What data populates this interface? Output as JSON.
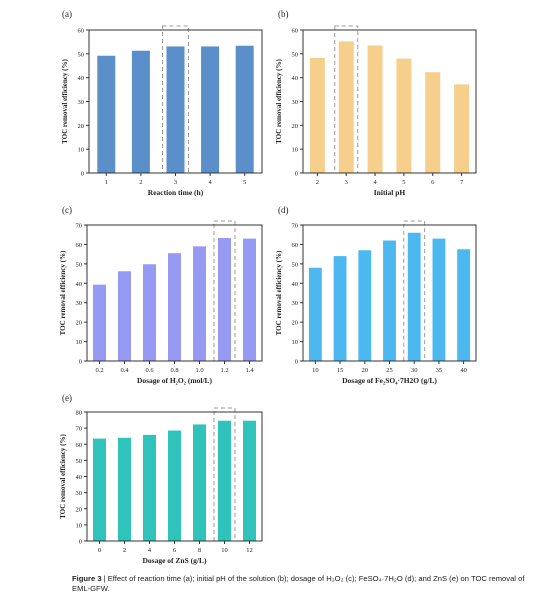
{
  "chart_data": [
    {
      "type": "bar",
      "panel_label": "(a)",
      "categories": [
        "1",
        "2",
        "3",
        "4",
        "5"
      ],
      "values": [
        49.2,
        51.3,
        53.1,
        53.1,
        53.4
      ],
      "xlabel": "Reaction time (h)",
      "ylabel": "TOC removal efficiency (%)",
      "ylim": [
        0,
        60
      ],
      "yticks": [
        "0",
        "10",
        "20",
        "30",
        "40",
        "50",
        "60"
      ],
      "highlight_index": 2,
      "color": "#5b8fc9"
    },
    {
      "type": "bar",
      "panel_label": "(b)",
      "categories": [
        "2",
        "3",
        "4",
        "5",
        "6",
        "7"
      ],
      "values": [
        48.3,
        55.2,
        53.5,
        48.0,
        42.3,
        37.2
      ],
      "xlabel": "Initial pH",
      "ylabel": "TOC removal efficiency (%)",
      "ylim": [
        0,
        60
      ],
      "yticks": [
        "0",
        "10",
        "20",
        "30",
        "40",
        "50",
        "60"
      ],
      "highlight_index": 1,
      "color": "#f6cf8d"
    },
    {
      "type": "bar",
      "panel_label": "(c)",
      "categories": [
        "0.2",
        "0.4",
        "0.6",
        "0.8",
        "1.0",
        "1.2",
        "1.4"
      ],
      "values": [
        39.3,
        46.2,
        49.8,
        55.5,
        59.0,
        63.3,
        63.0
      ],
      "xlabel": "Dosage of  H₂O₂ (mol/L)",
      "ylabel": "TOC removal efficiency (%)",
      "ylim": [
        0,
        70
      ],
      "yticks": [
        "0",
        "10",
        "20",
        "30",
        "40",
        "50",
        "60",
        "70"
      ],
      "highlight_index": 5,
      "color": "#969af3"
    },
    {
      "type": "bar",
      "panel_label": "(d)",
      "categories": [
        "10",
        "15",
        "20",
        "25",
        "30",
        "35",
        "40"
      ],
      "values": [
        48.0,
        54.0,
        57.0,
        62.0,
        66.0,
        63.0,
        57.5
      ],
      "xlabel": "Dosage of Fe₂SO₄·7H2O (g/L)",
      "ylabel": "TOC removal efficiency (%)",
      "ylim": [
        0,
        70
      ],
      "yticks": [
        "0",
        "10",
        "20",
        "30",
        "40",
        "50",
        "60",
        "70"
      ],
      "highlight_index": 4,
      "color": "#4db8f0"
    },
    {
      "type": "bar",
      "panel_label": "(e)",
      "categories": [
        "0",
        "2",
        "4",
        "6",
        "8",
        "10",
        "12"
      ],
      "values": [
        63.5,
        64.0,
        65.8,
        68.5,
        72.3,
        74.6,
        74.6
      ],
      "xlabel": "Dosage of ZnS (g/L)",
      "ylabel": "TOC removal efficiency (%)",
      "ylim": [
        0,
        80
      ],
      "yticks": [
        "0",
        "10",
        "20",
        "30",
        "40",
        "50",
        "60",
        "70",
        "80"
      ],
      "highlight_index": 5,
      "color": "#2fc3bb"
    }
  ],
  "caption": {
    "label": "Figure 3",
    "text": " | Effect of reaction time (a); initial pH of the solution (b); dosage of H₂O₂ (c); FeSO₄·7H₂O (d); and ZnS (e) on TOC removal of EML-GFW."
  }
}
